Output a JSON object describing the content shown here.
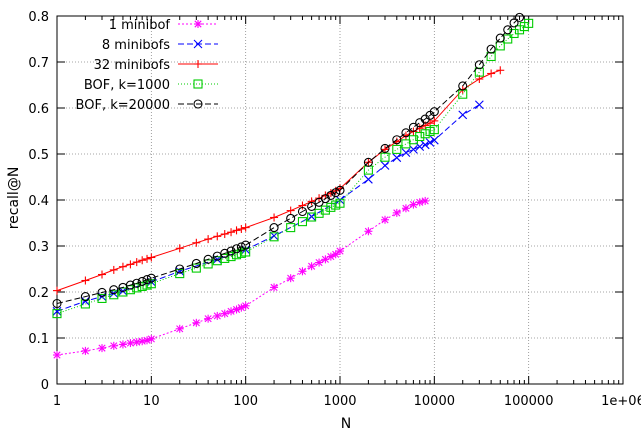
{
  "chart_data": {
    "type": "line",
    "title": "",
    "xlabel": "N",
    "ylabel": "recall@N",
    "xscale": "log",
    "xlim": [
      1,
      1000000
    ],
    "ylim": [
      0,
      0.8
    ],
    "xticks": [
      1,
      10,
      100,
      1000,
      10000,
      100000,
      1000000
    ],
    "xtick_labels": [
      "1",
      "10",
      "100",
      "1000",
      "10000",
      "100000",
      "1e+06"
    ],
    "yticks": [
      0,
      0.1,
      0.2,
      0.3,
      0.4,
      0.5,
      0.6,
      0.7,
      0.8
    ],
    "ytick_labels": [
      "0",
      "0.1",
      "0.2",
      "0.3",
      "0.4",
      "0.5",
      "0.6",
      "0.7",
      "0.8"
    ],
    "grid": true,
    "legend_position": "top-left",
    "series": [
      {
        "name": "1 minibof",
        "color": "#ff00ff",
        "marker": "asterisk",
        "dash": "2,2",
        "x": [
          1,
          2,
          3,
          4,
          5,
          6,
          7,
          8,
          9,
          10,
          20,
          30,
          40,
          50,
          60,
          70,
          80,
          90,
          100,
          200,
          300,
          400,
          500,
          600,
          700,
          800,
          900,
          1000,
          2000,
          3000,
          4000,
          5000,
          6000,
          7000,
          8000
        ],
        "y": [
          0.063,
          0.072,
          0.078,
          0.083,
          0.086,
          0.089,
          0.091,
          0.093,
          0.095,
          0.098,
          0.12,
          0.133,
          0.142,
          0.148,
          0.153,
          0.158,
          0.162,
          0.166,
          0.17,
          0.21,
          0.23,
          0.245,
          0.256,
          0.264,
          0.271,
          0.277,
          0.282,
          0.289,
          0.332,
          0.357,
          0.372,
          0.382,
          0.39,
          0.395,
          0.398
        ]
      },
      {
        "name": "8 minibofs",
        "color": "#0000ff",
        "marker": "x",
        "dash": "6,3",
        "x": [
          1,
          2,
          3,
          4,
          5,
          10,
          20,
          50,
          100,
          200,
          500,
          1000,
          2000,
          3000,
          4000,
          5000,
          6000,
          7000,
          8000,
          9000,
          10000,
          20000,
          30000
        ],
        "y": [
          0.158,
          0.18,
          0.19,
          0.197,
          0.202,
          0.222,
          0.245,
          0.271,
          0.292,
          0.322,
          0.364,
          0.4,
          0.445,
          0.475,
          0.492,
          0.503,
          0.51,
          0.516,
          0.52,
          0.525,
          0.53,
          0.585,
          0.607
        ]
      },
      {
        "name": "32 minibofs",
        "color": "#ff0000",
        "marker": "plus",
        "dash": "",
        "x": [
          1,
          2,
          3,
          4,
          5,
          6,
          7,
          8,
          9,
          10,
          20,
          30,
          40,
          50,
          60,
          70,
          80,
          90,
          100,
          200,
          300,
          400,
          500,
          600,
          700,
          800,
          900,
          1000,
          2000,
          3000,
          4000,
          5000,
          6000,
          7000,
          8000,
          9000,
          10000,
          20000,
          30000,
          40000,
          50000
        ],
        "y": [
          0.203,
          0.225,
          0.238,
          0.248,
          0.255,
          0.26,
          0.265,
          0.269,
          0.272,
          0.275,
          0.295,
          0.307,
          0.315,
          0.321,
          0.326,
          0.33,
          0.334,
          0.337,
          0.34,
          0.362,
          0.377,
          0.388,
          0.397,
          0.404,
          0.41,
          0.415,
          0.42,
          0.425,
          0.482,
          0.51,
          0.527,
          0.54,
          0.549,
          0.556,
          0.562,
          0.567,
          0.572,
          0.64,
          0.663,
          0.675,
          0.682
        ]
      },
      {
        "name": "BOF, k=1000",
        "color": "#00cc00",
        "marker": "square",
        "dash": "1,2",
        "x": [
          1,
          2,
          3,
          4,
          5,
          6,
          7,
          8,
          9,
          10,
          20,
          30,
          40,
          50,
          60,
          70,
          80,
          90,
          100,
          200,
          300,
          400,
          500,
          600,
          700,
          800,
          900,
          1000,
          2000,
          3000,
          4000,
          5000,
          6000,
          7000,
          8000,
          9000,
          10000,
          20000,
          30000,
          40000,
          50000,
          60000,
          70000,
          80000,
          90000,
          100000
        ],
        "y": [
          0.153,
          0.174,
          0.186,
          0.194,
          0.2,
          0.205,
          0.209,
          0.212,
          0.215,
          0.218,
          0.24,
          0.252,
          0.261,
          0.268,
          0.273,
          0.277,
          0.281,
          0.284,
          0.287,
          0.32,
          0.34,
          0.353,
          0.363,
          0.371,
          0.378,
          0.384,
          0.389,
          0.393,
          0.465,
          0.493,
          0.51,
          0.522,
          0.531,
          0.538,
          0.544,
          0.549,
          0.553,
          0.63,
          0.678,
          0.712,
          0.735,
          0.75,
          0.762,
          0.77,
          0.777,
          0.784
        ]
      },
      {
        "name": "BOF, k=20000",
        "color": "#000000",
        "marker": "circle",
        "dash": "6,3",
        "x": [
          1,
          2,
          3,
          4,
          5,
          6,
          7,
          8,
          9,
          10,
          20,
          30,
          40,
          50,
          60,
          70,
          80,
          90,
          100,
          200,
          300,
          400,
          500,
          600,
          700,
          800,
          900,
          1000,
          2000,
          3000,
          4000,
          5000,
          6000,
          7000,
          8000,
          9000,
          10000,
          20000,
          30000,
          40000,
          50000,
          60000,
          70000,
          80000
        ],
        "y": [
          0.175,
          0.19,
          0.199,
          0.205,
          0.21,
          0.215,
          0.219,
          0.223,
          0.227,
          0.23,
          0.25,
          0.262,
          0.271,
          0.278,
          0.284,
          0.289,
          0.294,
          0.298,
          0.302,
          0.34,
          0.36,
          0.375,
          0.386,
          0.395,
          0.403,
          0.41,
          0.416,
          0.421,
          0.482,
          0.512,
          0.531,
          0.546,
          0.558,
          0.568,
          0.576,
          0.584,
          0.592,
          0.648,
          0.694,
          0.728,
          0.752,
          0.77,
          0.785,
          0.797
        ]
      }
    ]
  }
}
